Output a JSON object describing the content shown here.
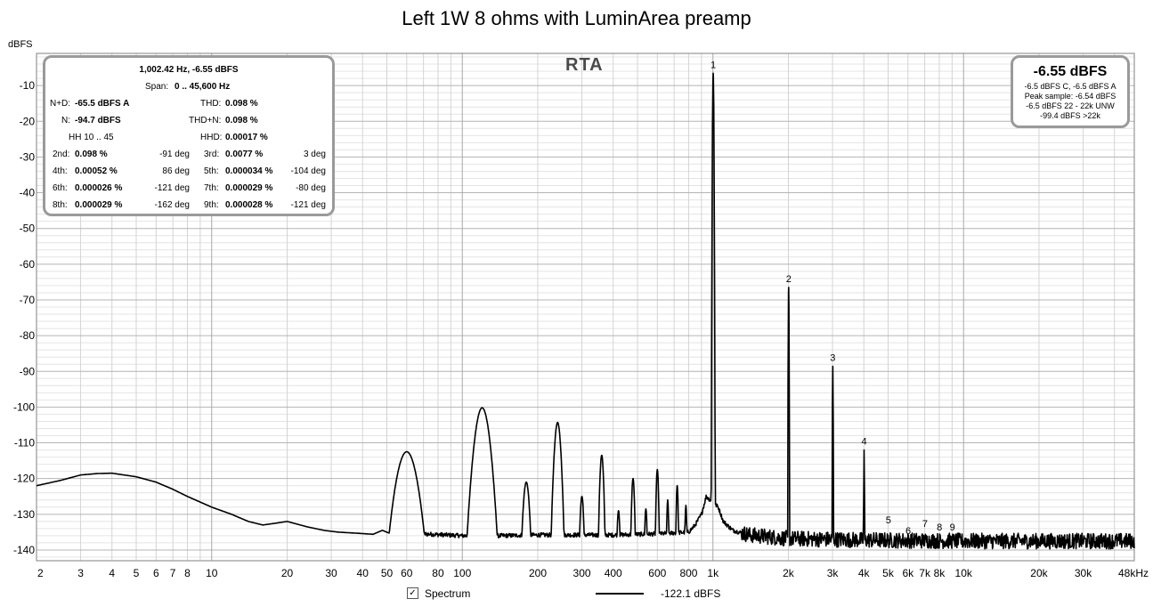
{
  "chart_data": {
    "type": "line",
    "title": "Left 1W 8 ohms with LuminArea preamp",
    "ylabel": "dBFS",
    "xlabel": "",
    "x_scale": "log",
    "xlim": [
      2,
      48000
    ],
    "ylim": [
      -143,
      -1
    ],
    "grid": true,
    "y_ticks": [
      -10,
      -20,
      -30,
      -40,
      -50,
      -60,
      -70,
      -80,
      -90,
      -100,
      -110,
      -120,
      -130,
      -140
    ],
    "x_ticks": [
      {
        "v": 2,
        "label": "2"
      },
      {
        "v": 3,
        "label": "3"
      },
      {
        "v": 4,
        "label": "4"
      },
      {
        "v": 5,
        "label": "5"
      },
      {
        "v": 6,
        "label": "6"
      },
      {
        "v": 7,
        "label": "7"
      },
      {
        "v": 8,
        "label": "8"
      },
      {
        "v": 10,
        "label": "10"
      },
      {
        "v": 20,
        "label": "20"
      },
      {
        "v": 30,
        "label": "30"
      },
      {
        "v": 40,
        "label": "40"
      },
      {
        "v": 50,
        "label": "50"
      },
      {
        "v": 60,
        "label": "60"
      },
      {
        "v": 80,
        "label": "80"
      },
      {
        "v": 100,
        "label": "100"
      },
      {
        "v": 200,
        "label": "200"
      },
      {
        "v": 300,
        "label": "300"
      },
      {
        "v": 400,
        "label": "400"
      },
      {
        "v": 600,
        "label": "600"
      },
      {
        "v": 800,
        "label": "800"
      },
      {
        "v": 1000,
        "label": "1k"
      },
      {
        "v": 2000,
        "label": "2k"
      },
      {
        "v": 3000,
        "label": "3k"
      },
      {
        "v": 4000,
        "label": "4k"
      },
      {
        "v": 5000,
        "label": "5k"
      },
      {
        "v": 6000,
        "label": "6k"
      },
      {
        "v": 7000,
        "label": "7k"
      },
      {
        "v": 8000,
        "label": "8k"
      },
      {
        "v": 10000,
        "label": "10k"
      },
      {
        "v": 20000,
        "label": "20k"
      },
      {
        "v": 30000,
        "label": "30k"
      },
      {
        "v": 48000,
        "label": "48kHz"
      }
    ],
    "series": [
      {
        "name": "Spectrum",
        "color": "#000000",
        "baseline": [
          [
            2,
            -122
          ],
          [
            2.5,
            -120.5
          ],
          [
            3,
            -119
          ],
          [
            3.5,
            -118.6
          ],
          [
            4,
            -118.5
          ],
          [
            5,
            -119.5
          ],
          [
            6,
            -121
          ],
          [
            7,
            -123
          ],
          [
            8,
            -125
          ],
          [
            10,
            -128
          ],
          [
            12,
            -130
          ],
          [
            14,
            -132
          ],
          [
            16,
            -133
          ],
          [
            18,
            -132.5
          ],
          [
            20,
            -132
          ],
          [
            24,
            -133.5
          ],
          [
            28,
            -134.5
          ],
          [
            32,
            -135
          ],
          [
            38,
            -135.3
          ],
          [
            44,
            -135.6
          ],
          [
            48,
            -134.5
          ],
          [
            52,
            -135.5
          ],
          [
            70,
            -135.5
          ],
          [
            100,
            -136
          ],
          [
            140,
            -136
          ],
          [
            200,
            -135.8
          ],
          [
            300,
            -135.8
          ],
          [
            400,
            -135.8
          ],
          [
            600,
            -135.5
          ],
          [
            800,
            -135
          ],
          [
            850,
            -133
          ],
          [
            900,
            -130
          ],
          [
            940,
            -125
          ],
          [
            1050,
            -128
          ],
          [
            1100,
            -132
          ],
          [
            1200,
            -134.5
          ],
          [
            1400,
            -135.8
          ],
          [
            2000,
            -136.8
          ],
          [
            4000,
            -137.2
          ],
          [
            10000,
            -137.5
          ],
          [
            20000,
            -137.5
          ],
          [
            48000,
            -137.5
          ]
        ],
        "noise_above_hz": 1300,
        "noise_spread_db": 2.2,
        "peaks": [
          {
            "f": 60,
            "level": -112.5,
            "width": 0.08
          },
          {
            "f": 120,
            "level": -100.2,
            "width": 0.055
          },
          {
            "f": 180,
            "level": -121,
            "width": 0.025
          },
          {
            "f": 240,
            "level": -104.3,
            "width": 0.025
          },
          {
            "f": 300,
            "level": -125,
            "width": 0.015
          },
          {
            "f": 360,
            "level": -113.5,
            "width": 0.015
          },
          {
            "f": 420,
            "level": -129,
            "width": 0.012
          },
          {
            "f": 480,
            "level": -120,
            "width": 0.012
          },
          {
            "f": 540,
            "level": -128.5,
            "width": 0.01
          },
          {
            "f": 600,
            "level": -117.5,
            "width": 0.01
          },
          {
            "f": 660,
            "level": -126,
            "width": 0.008
          },
          {
            "f": 720,
            "level": -122,
            "width": 0.008
          },
          {
            "f": 780,
            "level": -127.5,
            "width": 0.008
          },
          {
            "f": 1002.42,
            "level": -6.55,
            "width": 0.004
          },
          {
            "f": 2004.8,
            "level": -66.5,
            "width": 0.0025
          },
          {
            "f": 3007.3,
            "level": -88.6,
            "width": 0.0025
          },
          {
            "f": 4009.7,
            "level": -112,
            "width": 0.0025
          }
        ]
      }
    ],
    "harmonic_markers": [
      {
        "label": "1",
        "f": 1002.42,
        "level": -6.55
      },
      {
        "label": "2",
        "f": 2004.8,
        "level": -66.5
      },
      {
        "label": "3",
        "f": 3007.3,
        "level": -88.6
      },
      {
        "label": "4",
        "f": 4009.7,
        "level": -112
      },
      {
        "label": "5",
        "f": 5012,
        "level": -134
      },
      {
        "label": "6",
        "f": 6014,
        "level": -137
      },
      {
        "label": "7",
        "f": 7017,
        "level": -135
      },
      {
        "label": "8",
        "f": 8019,
        "level": -136
      },
      {
        "label": "9",
        "f": 9022,
        "level": -136
      }
    ]
  },
  "rta_label": "RTA",
  "stats": {
    "freq_line": "1,002.42 Hz, -6.55 dBFS",
    "span_label": "Span:",
    "span_value": "0 .. 45,600 Hz",
    "nd_label": "N+D:",
    "nd_value": "-65.5 dBFS A",
    "thd_label": "THD:",
    "thd_value": "0.098 %",
    "n_label": "N:",
    "n_value": "-94.7 dBFS",
    "thdn_label": "THD+N:",
    "thdn_value": "0.098 %",
    "hh_label": "HH 10 .. 45",
    "hhd_label": "HHD:",
    "hhd_value": "0.00017 %",
    "harmonics": [
      {
        "a_label": "2nd:",
        "a_value": "0.098 %",
        "a_phase": "-91 deg",
        "b_label": "3rd:",
        "b_value": "0.0077 %",
        "b_phase": "3 deg"
      },
      {
        "a_label": "4th:",
        "a_value": "0.00052 %",
        "a_phase": "86 deg",
        "b_label": "5th:",
        "b_value": "0.000034 %",
        "b_phase": "-104 deg"
      },
      {
        "a_label": "6th:",
        "a_value": "0.000026 %",
        "a_phase": "-121 deg",
        "b_label": "7th:",
        "b_value": "0.000029 %",
        "b_phase": "-80 deg"
      },
      {
        "a_label": "8th:",
        "a_value": "0.000029 %",
        "a_phase": "-162 deg",
        "b_label": "9th:",
        "b_value": "0.000028 %",
        "b_phase": "-121 deg"
      }
    ]
  },
  "peak_box": {
    "main": "-6.55 dBFS",
    "line1": "-6.5 dBFS C, -6.5 dBFS A",
    "line2": "Peak sample: -6.54 dBFS",
    "line3": "-6.5 dBFS 22 - 22k UNW",
    "line4": "-99.4 dBFS >22k"
  },
  "legend": {
    "check_mark": "✓",
    "series_label": "Spectrum",
    "level_value": "-122.1 dBFS"
  }
}
